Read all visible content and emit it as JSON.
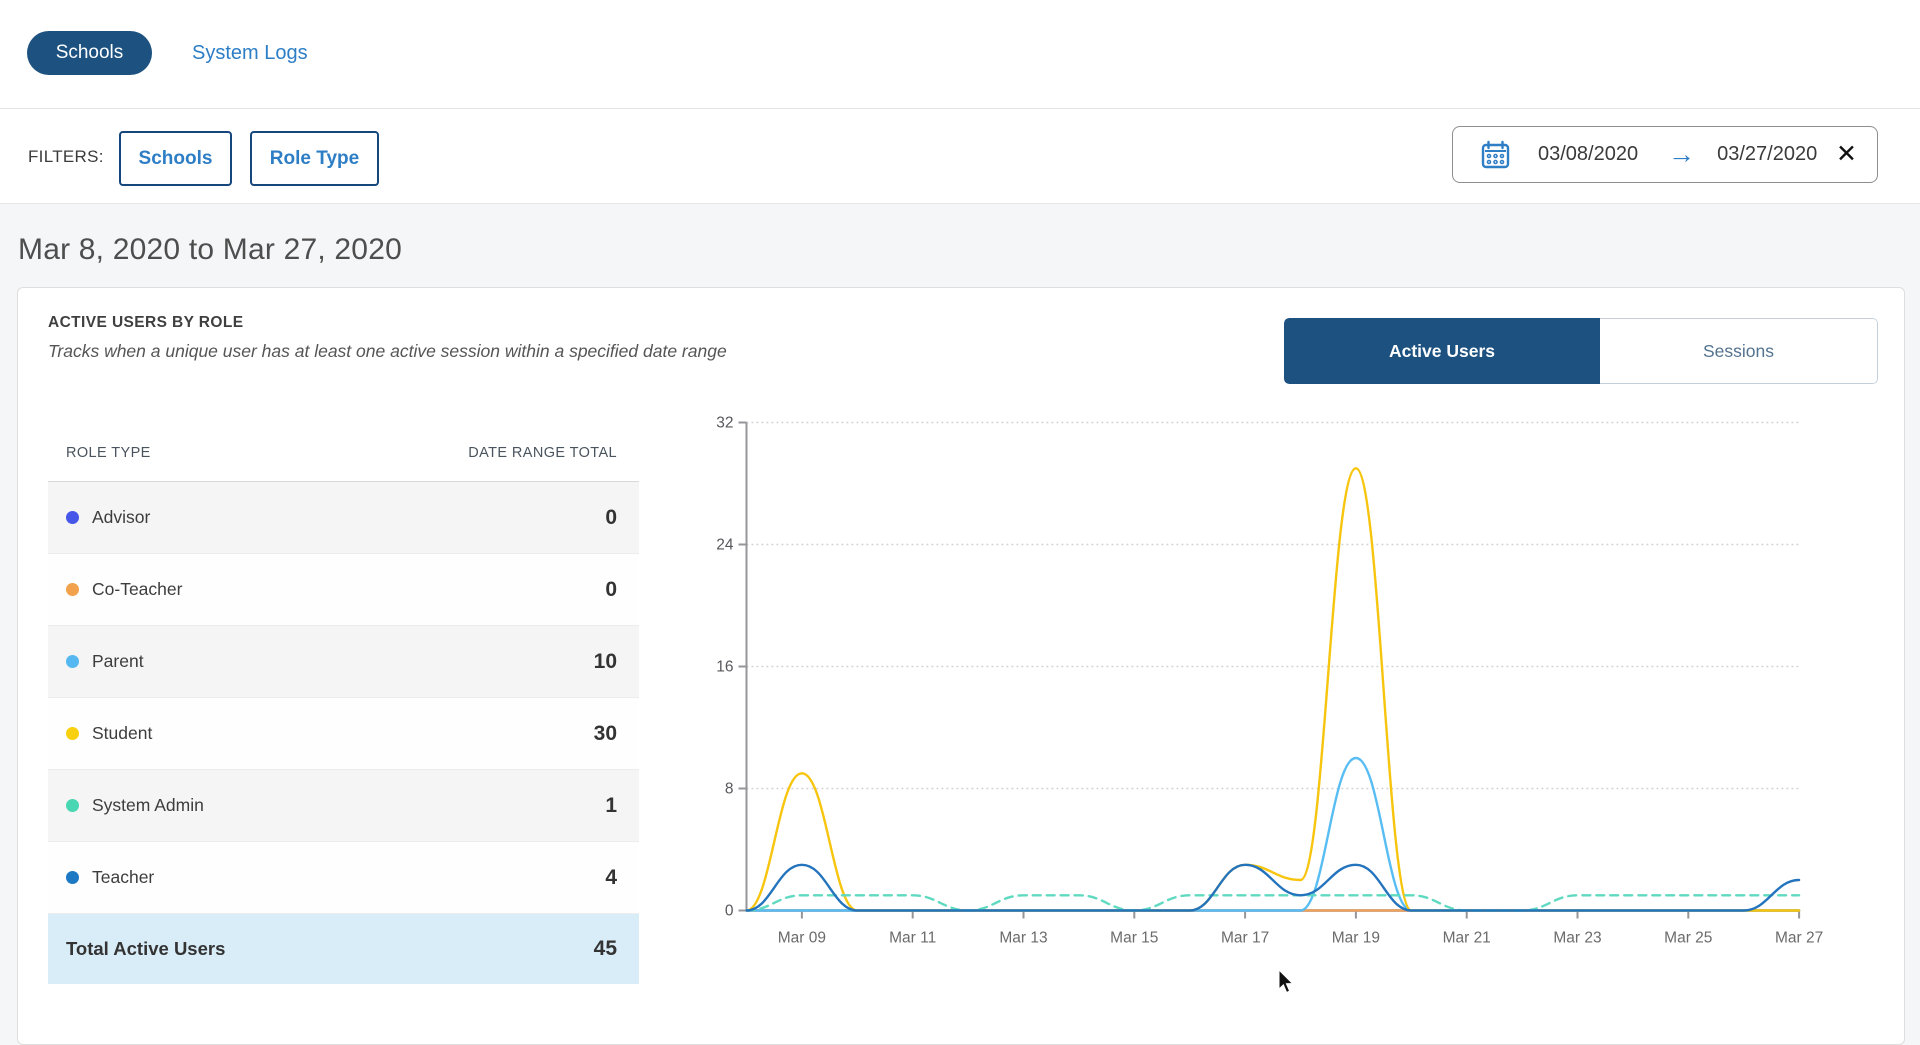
{
  "nav": {
    "schools_tab": "Schools",
    "system_logs_tab": "System Logs"
  },
  "filters": {
    "label": "FILTERS:",
    "schools_button": "Schools",
    "role_type_button": "Role Type",
    "date_range": {
      "start": "03/08/2020",
      "end": "03/27/2020",
      "arrow_glyph": "→",
      "clear_glyph": "✕",
      "calendar_icon_color": "#2e7ec6"
    }
  },
  "heading": "Mar 8, 2020 to Mar 27, 2020",
  "card": {
    "title": "ACTIVE USERS BY ROLE",
    "subtitle": "Tracks when a unique user has at least one active session within a specified date range",
    "view_toggle": {
      "active_label": "Active Users",
      "inactive_label": "Sessions",
      "active_color": "#1c5180"
    },
    "table": {
      "columns": [
        "ROLE TYPE",
        "DATE RANGE TOTAL"
      ],
      "rows": [
        {
          "label": "Advisor",
          "value": "0",
          "color": "#4656e8"
        },
        {
          "label": "Co-Teacher",
          "value": "0",
          "color": "#f2a14c"
        },
        {
          "label": "Parent",
          "value": "10",
          "color": "#55b8f0"
        },
        {
          "label": "Student",
          "value": "30",
          "color": "#f8d00e"
        },
        {
          "label": "System Admin",
          "value": "1",
          "color": "#49d6b2"
        },
        {
          "label": "Teacher",
          "value": "4",
          "color": "#1e79c4"
        }
      ],
      "total": {
        "label": "Total Active Users",
        "value": "45"
      }
    }
  },
  "chart_data": {
    "type": "line",
    "x": [
      "Mar 08",
      "Mar 09",
      "Mar 10",
      "Mar 11",
      "Mar 12",
      "Mar 13",
      "Mar 14",
      "Mar 15",
      "Mar 16",
      "Mar 17",
      "Mar 18",
      "Mar 19",
      "Mar 20",
      "Mar 21",
      "Mar 22",
      "Mar 23",
      "Mar 24",
      "Mar 25",
      "Mar 26",
      "Mar 27"
    ],
    "series": [
      {
        "name": "Advisor",
        "color": "#4656e8",
        "dash": false,
        "values": [
          0,
          0,
          0,
          0,
          0,
          0,
          0,
          0,
          0,
          0,
          0,
          0,
          0,
          0,
          0,
          0,
          0,
          0,
          0,
          0
        ]
      },
      {
        "name": "Co-Teacher",
        "color": "#f0a355",
        "dash": false,
        "values": [
          0,
          0,
          0,
          0,
          0,
          0,
          0,
          0,
          0,
          0,
          0,
          0,
          0,
          0,
          0,
          0,
          0,
          0,
          0,
          0
        ]
      },
      {
        "name": "Parent",
        "color": "#58bdf3",
        "dash": false,
        "values": [
          0,
          0,
          0,
          0,
          0,
          0,
          0,
          0,
          0,
          0,
          0,
          10,
          0,
          0,
          0,
          0,
          0,
          0,
          0,
          0
        ]
      },
      {
        "name": "Student",
        "color": "#f7c50e",
        "dash": false,
        "values": [
          0,
          9,
          0,
          0,
          0,
          0,
          0,
          0,
          0,
          3,
          2,
          29,
          0,
          0,
          0,
          0,
          0,
          0,
          0,
          0
        ]
      },
      {
        "name": "System Admin",
        "color": "#5fdac1",
        "dash": true,
        "values": [
          0,
          1,
          1,
          1,
          0,
          1,
          1,
          0,
          1,
          1,
          1,
          1,
          1,
          0,
          0,
          1,
          1,
          1,
          1,
          1
        ]
      },
      {
        "name": "Teacher",
        "color": "#2474bd",
        "dash": false,
        "values": [
          0,
          3,
          0,
          0,
          0,
          0,
          0,
          0,
          0,
          3,
          1,
          3,
          0,
          0,
          0,
          0,
          0,
          0,
          0,
          2
        ]
      }
    ],
    "ylim": [
      0,
      32
    ],
    "yticks": [
      0,
      8,
      16,
      24,
      32
    ],
    "xtick_labels": [
      "Mar 09",
      "Mar 11",
      "Mar 13",
      "Mar 15",
      "Mar 17",
      "Mar 19",
      "Mar 21",
      "Mar 23",
      "Mar 25",
      "Mar 27"
    ],
    "grid": "horizontal-dotted",
    "legend_position": "table-left"
  }
}
